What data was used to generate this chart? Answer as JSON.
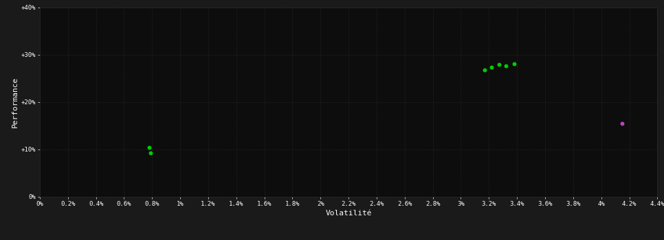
{
  "background_color": "#1a1a1a",
  "plot_bg_color": "#0d0d0d",
  "grid_color": "#2a2a2a",
  "text_color": "#ffffff",
  "xlabel": "Volatilité",
  "ylabel": "Performance",
  "xlim": [
    0.0,
    0.044
  ],
  "ylim": [
    0.0,
    0.4
  ],
  "xticks": [
    0.0,
    0.002,
    0.004,
    0.006,
    0.008,
    0.01,
    0.012,
    0.014,
    0.016,
    0.018,
    0.02,
    0.022,
    0.024,
    0.026,
    0.028,
    0.03,
    0.032,
    0.034,
    0.036,
    0.038,
    0.04,
    0.042,
    0.044
  ],
  "xtick_labels": [
    "0%",
    "0.2%",
    "0.4%",
    "0.6%",
    "0.8%",
    "1%",
    "1.2%",
    "1.4%",
    "1.6%",
    "1.8%",
    "2%",
    "2.2%",
    "2.4%",
    "2.6%",
    "2.8%",
    "3%",
    "3.2%",
    "3.4%",
    "3.6%",
    "3.8%",
    "4%",
    "4.2%",
    "4.4%"
  ],
  "yticks": [
    0.0,
    0.1,
    0.2,
    0.3,
    0.4
  ],
  "ytick_labels": [
    "0%",
    "+10%",
    "+20%",
    "+30%",
    "+40%"
  ],
  "green_points": [
    [
      0.0078,
      0.104
    ],
    [
      0.0079,
      0.093
    ],
    [
      0.0317,
      0.268
    ],
    [
      0.0322,
      0.274
    ],
    [
      0.0327,
      0.279
    ],
    [
      0.0332,
      0.276
    ],
    [
      0.0338,
      0.281
    ]
  ],
  "magenta_points": [
    [
      0.0415,
      0.155
    ]
  ],
  "green_color": "#00cc00",
  "magenta_color": "#bb44bb",
  "marker_size": 5
}
